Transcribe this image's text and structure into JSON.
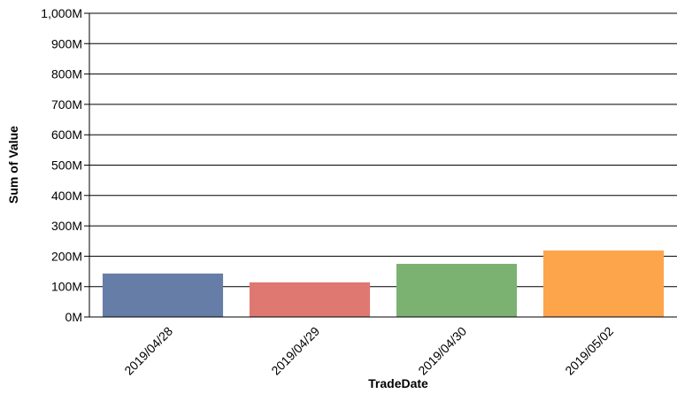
{
  "chart_data": {
    "type": "bar",
    "categories": [
      "2019/04/28",
      "2019/04/29",
      "2019/04/30",
      "2019/05/02"
    ],
    "values": [
      143,
      114,
      175,
      219
    ],
    "value_unit": "M",
    "colors": [
      "#667ea7",
      "#e07872",
      "#7bb272",
      "#fda54b"
    ],
    "xlabel": "TradeDate",
    "ylabel": "Sum of Value",
    "ylim": [
      0,
      1000
    ],
    "yticks": [
      "0M",
      "100M",
      "200M",
      "300M",
      "400M",
      "500M",
      "600M",
      "700M",
      "800M",
      "900M",
      "1,000M"
    ],
    "grid": true,
    "legend": "none"
  }
}
